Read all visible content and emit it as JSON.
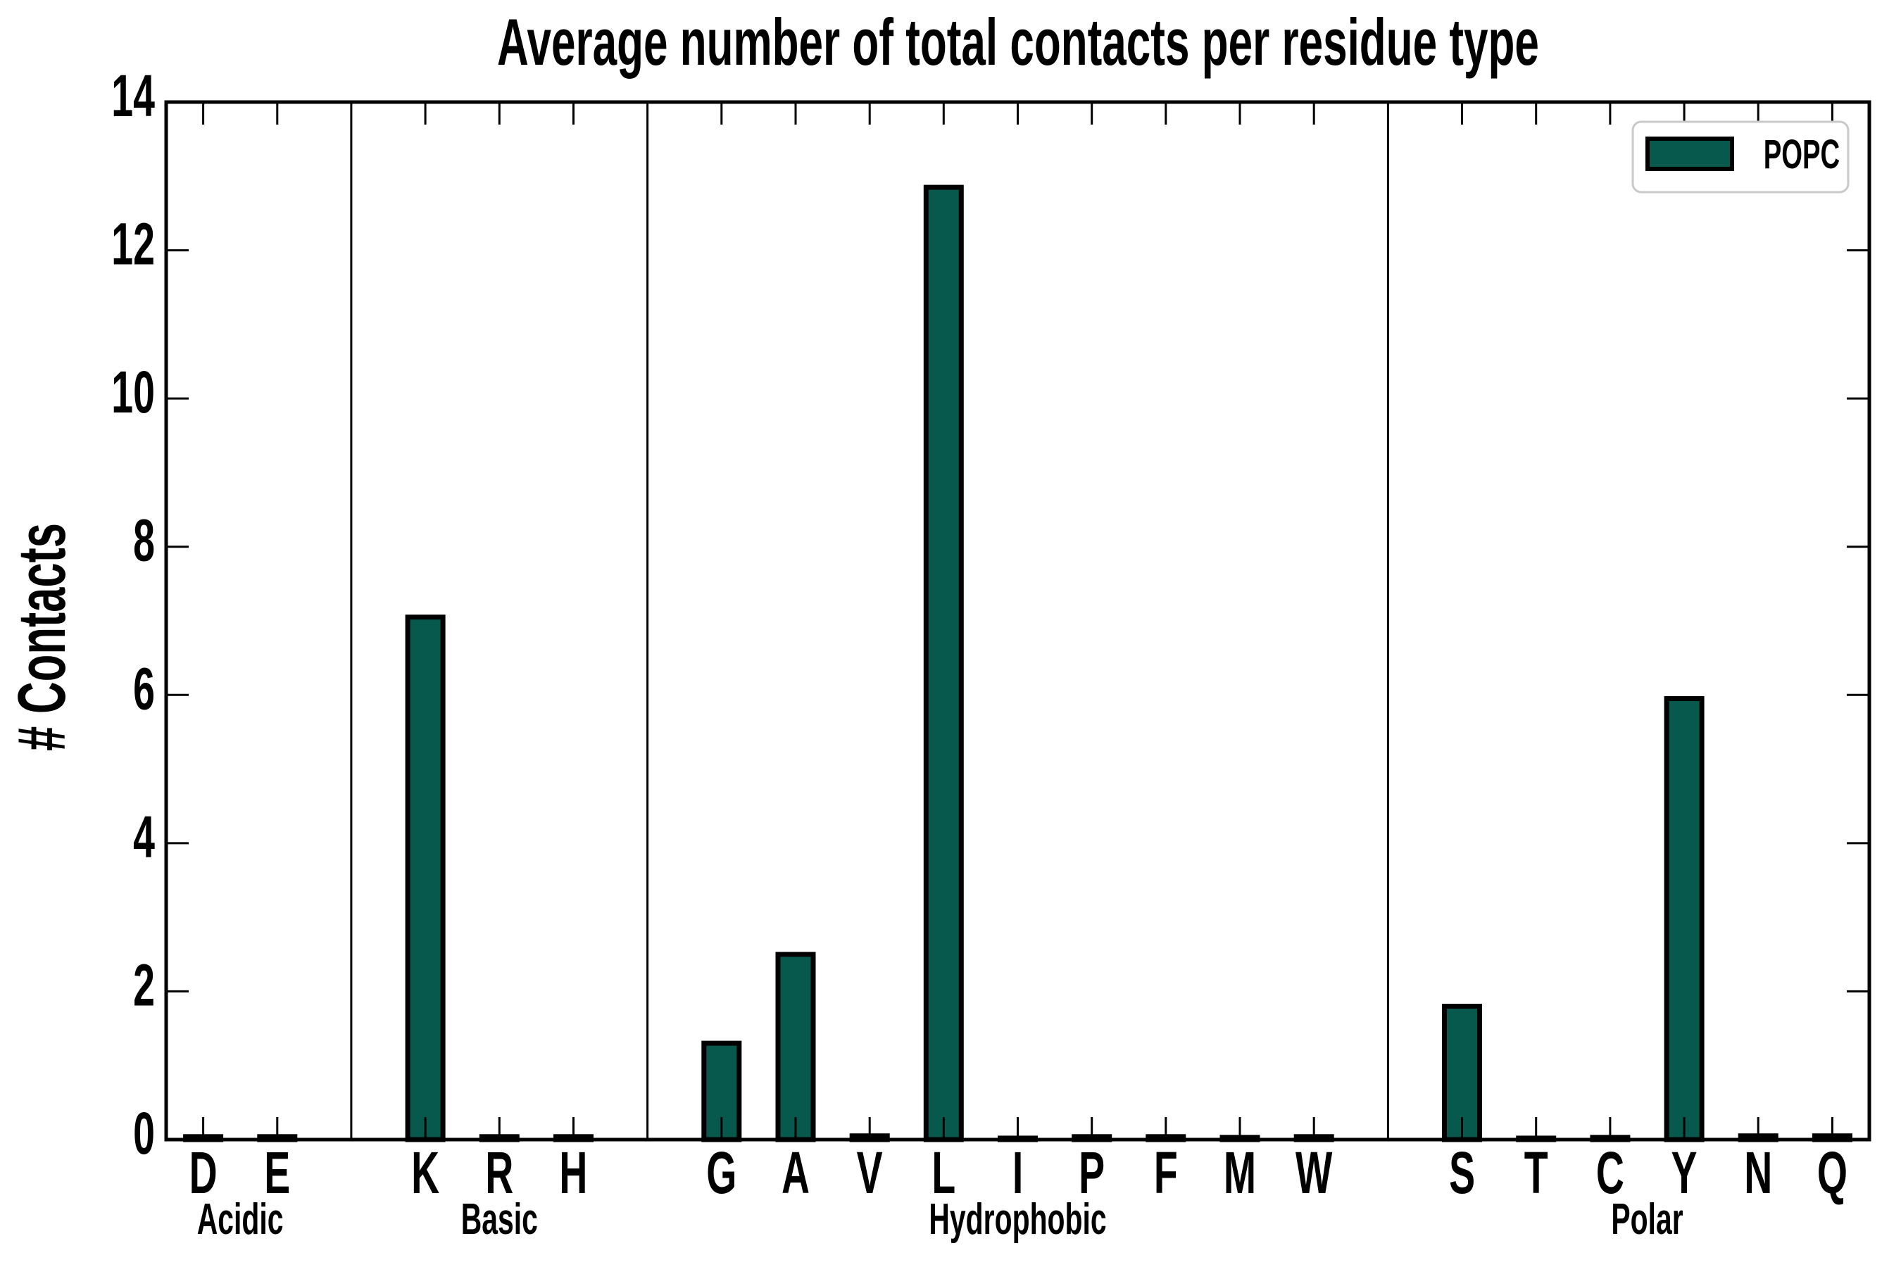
{
  "figure": {
    "title": "Average number of total contacts per residue type",
    "ylabel": "# Contacts"
  },
  "chart_data": {
    "type": "bar",
    "title": "Average number of total contacts per residue type",
    "xlabel": "",
    "ylabel": "# Contacts",
    "ylim": [
      0,
      14
    ],
    "yticks": [
      0,
      2,
      4,
      6,
      8,
      10,
      12,
      14
    ],
    "grid": false,
    "legend": {
      "series": "POPC",
      "position": "upper right"
    },
    "colors": {
      "bar_fill": "#07594E",
      "bar_edge": "#000000",
      "axis": "#000000",
      "legend_border": "#C9C9C9",
      "legend_fill": "#FFFFFF"
    },
    "groups": [
      {
        "label": "Acidic",
        "categories": [
          "D",
          "E"
        ],
        "values": [
          0.04,
          0.04
        ]
      },
      {
        "label": "Basic",
        "categories": [
          "K",
          "R",
          "H"
        ],
        "values": [
          7.05,
          0.04,
          0.04
        ]
      },
      {
        "label": "Hydrophobic",
        "categories": [
          "G",
          "A",
          "V",
          "L",
          "I",
          "P",
          "F",
          "M",
          "W"
        ],
        "values": [
          1.3,
          2.5,
          0.05,
          12.85,
          0.02,
          0.04,
          0.04,
          0.03,
          0.04
        ]
      },
      {
        "label": "Polar",
        "categories": [
          "S",
          "T",
          "C",
          "Y",
          "N",
          "Q"
        ],
        "values": [
          1.8,
          0.02,
          0.03,
          5.95,
          0.05,
          0.05
        ]
      }
    ]
  }
}
